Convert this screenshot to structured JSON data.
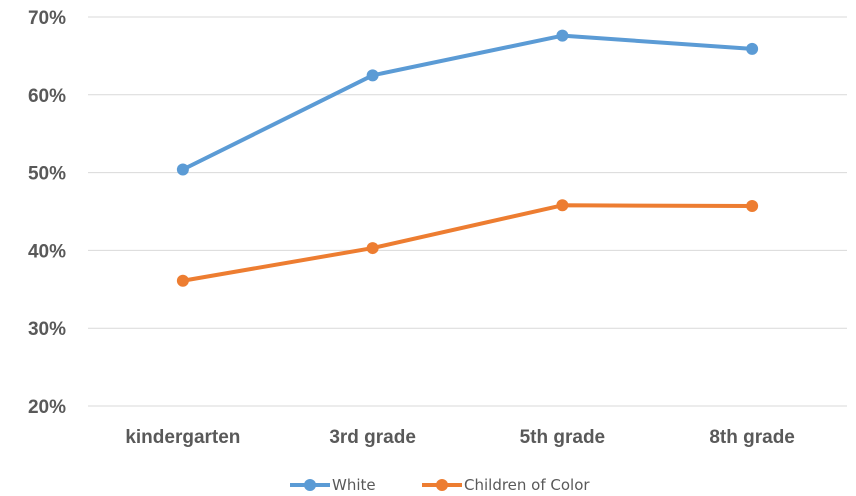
{
  "chart_data": {
    "type": "line",
    "title": "",
    "xlabel": "",
    "ylabel": "",
    "categories": [
      "kindergarten",
      "3rd grade",
      "5th grade",
      "8th grade"
    ],
    "ylim": [
      20,
      70
    ],
    "yticks": [
      20,
      30,
      40,
      50,
      60,
      70
    ],
    "ytick_labels": [
      "20%",
      "30%",
      "40%",
      "50%",
      "60%",
      "70%"
    ],
    "grid": true,
    "legend_position": "bottom",
    "series": [
      {
        "name": "White",
        "color": "#5b9bd5",
        "values": [
          50.4,
          62.5,
          67.6,
          65.9
        ]
      },
      {
        "name": "Children of Color",
        "color": "#ed7d31",
        "values": [
          36.1,
          40.3,
          45.8,
          45.7
        ]
      }
    ]
  }
}
